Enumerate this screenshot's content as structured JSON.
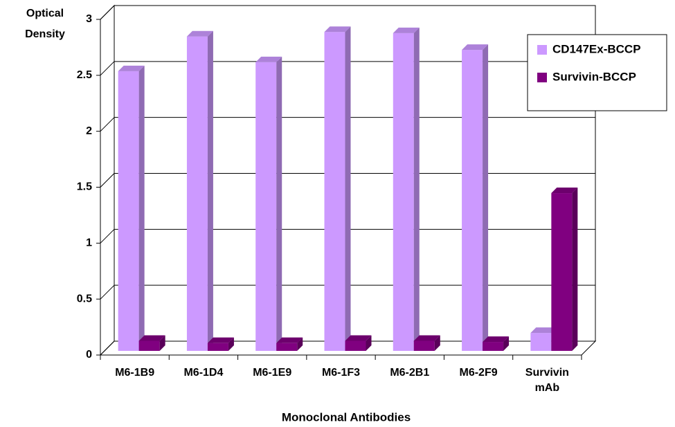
{
  "chart_data": {
    "type": "bar3d",
    "y_label": [
      "Optical",
      "Density"
    ],
    "x_label": "Monoclonal Antibodies",
    "categories": [
      "M6-1B9",
      "M6-1D4",
      "M6-1E9",
      "M6-1F3",
      "M6-2B1",
      "M6-2F9",
      "Survivin mAb"
    ],
    "series": [
      {
        "name": "CD147Ex-BCCP",
        "color": "#cc99ff",
        "values": [
          2.5,
          2.81,
          2.58,
          2.85,
          2.84,
          2.69,
          0.16
        ]
      },
      {
        "name": "Survivin-BCCP",
        "color": "#800080",
        "values": [
          0.09,
          0.07,
          0.07,
          0.09,
          0.09,
          0.08,
          1.41
        ]
      }
    ],
    "ylim": [
      0,
      3
    ],
    "yticks": [
      0,
      0.5,
      1,
      1.5,
      2,
      2.5,
      3
    ],
    "grid": true,
    "legend": "right"
  }
}
